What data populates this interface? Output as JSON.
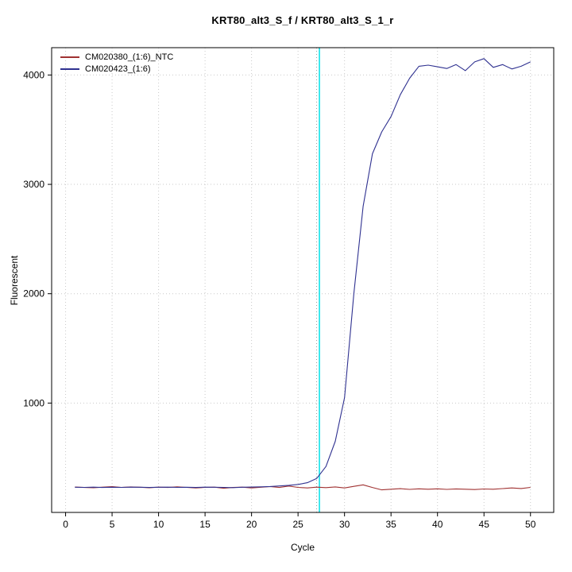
{
  "title": "KRT80_alt3_S_f / KRT80_alt3_S_1_r",
  "colors": {
    "ntc_series": "#a03232",
    "sample_series": "#2f3190",
    "threshold_line": "#00e0e8",
    "ct_marker_line": "#9a9a9a",
    "grid": "#c9c9c9",
    "axis": "#000000"
  },
  "chart_data": {
    "type": "line",
    "title": "KRT80_alt3_S_f / KRT80_alt3_S_1_r",
    "xlabel": "Cycle",
    "ylabel": "Fluorescent",
    "xlim": [
      -1.5,
      52.5
    ],
    "ylim": [
      0,
      4250
    ],
    "x_ticks": [
      0,
      5,
      10,
      15,
      20,
      25,
      30,
      35,
      40,
      45,
      50
    ],
    "y_ticks": [
      1000,
      2000,
      3000,
      4000
    ],
    "grid": "dotted",
    "legend_position": "top-left",
    "threshold_cycle_line": {
      "x": 27.3
    },
    "ct_marker_line": {
      "x": 27.0
    },
    "x": [
      1,
      2,
      3,
      4,
      5,
      6,
      7,
      8,
      9,
      10,
      11,
      12,
      13,
      14,
      15,
      16,
      17,
      18,
      19,
      20,
      21,
      22,
      23,
      24,
      25,
      26,
      27,
      28,
      29,
      30,
      31,
      32,
      33,
      34,
      35,
      36,
      37,
      38,
      39,
      40,
      41,
      42,
      43,
      44,
      45,
      46,
      47,
      48,
      49,
      50
    ],
    "series": [
      {
        "name": "CM020380_(1:6)_NTC",
        "color_key": "ntc_series",
        "values": [
          232,
          228,
          226,
          231,
          236,
          229,
          233,
          230,
          226,
          231,
          228,
          234,
          229,
          224,
          229,
          231,
          221,
          228,
          231,
          224,
          230,
          236,
          228,
          241,
          229,
          224,
          231,
          227,
          233,
          224,
          238,
          252,
          228,
          206,
          212,
          217,
          211,
          216,
          212,
          216,
          211,
          215,
          212,
          209,
          214,
          212,
          218,
          224,
          219,
          229
        ]
      },
      {
        "name": "CM020423_(1:6)",
        "color_key": "sample_series",
        "values": [
          230,
          229,
          231,
          228,
          230,
          229,
          231,
          230,
          228,
          230,
          231,
          229,
          230,
          228,
          231,
          230,
          229,
          227,
          230,
          232,
          234,
          237,
          242,
          248,
          256,
          272,
          310,
          420,
          650,
          1050,
          2000,
          2800,
          3280,
          3480,
          3620,
          3820,
          3970,
          4080,
          4090,
          4075,
          4060,
          4095,
          4040,
          4120,
          4150,
          4070,
          4095,
          4055,
          4080,
          4120
        ]
      }
    ]
  }
}
